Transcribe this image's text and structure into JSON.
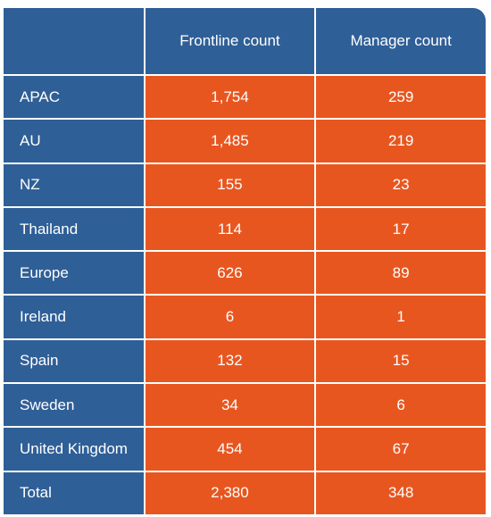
{
  "chart_data": {
    "type": "table",
    "columns": [
      "",
      "Frontline count",
      "Manager count"
    ],
    "rows": [
      {
        "region": "APAC",
        "frontline": "1,754",
        "manager": "259"
      },
      {
        "region": "AU",
        "frontline": "1,485",
        "manager": "219"
      },
      {
        "region": "NZ",
        "frontline": "155",
        "manager": "23"
      },
      {
        "region": "Thailand",
        "frontline": "114",
        "manager": "17"
      },
      {
        "region": "Europe",
        "frontline": "626",
        "manager": "89"
      },
      {
        "region": "Ireland",
        "frontline": "6",
        "manager": "1"
      },
      {
        "region": "Spain",
        "frontline": "132",
        "manager": "15"
      },
      {
        "region": "Sweden",
        "frontline": "34",
        "manager": "6"
      },
      {
        "region": "United Kingdom",
        "frontline": "454",
        "manager": "67"
      },
      {
        "region": "Total",
        "frontline": "2,380",
        "manager": "348"
      }
    ]
  },
  "colors": {
    "header_and_label_bg": "#2f5f97",
    "value_bg": "#e8561f",
    "text": "#ffffff"
  }
}
